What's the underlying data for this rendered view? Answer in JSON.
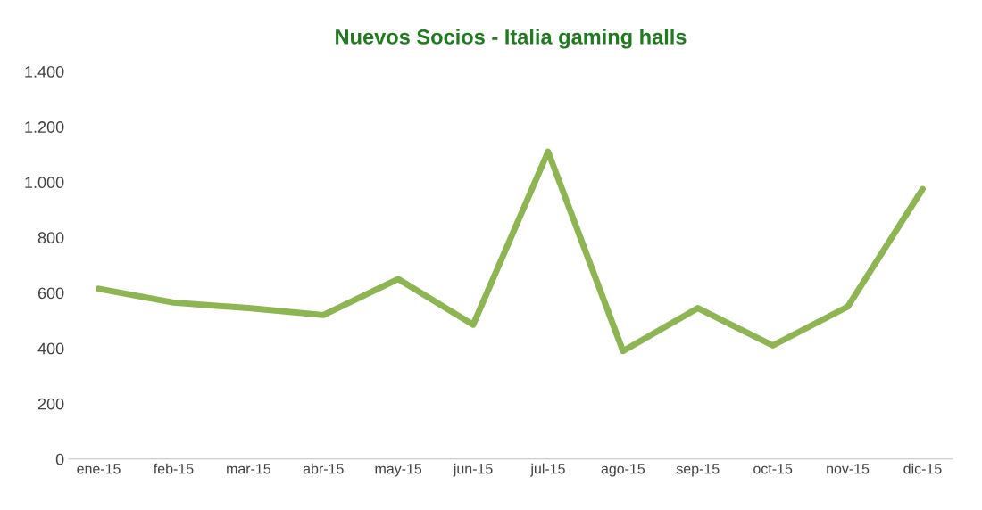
{
  "chart_data": {
    "type": "line",
    "title": "Nuevos Socios - Italia gaming halls",
    "categories": [
      "ene-15",
      "feb-15",
      "mar-15",
      "abr-15",
      "may-15",
      "jun-15",
      "jul-15",
      "ago-15",
      "sep-15",
      "oct-15",
      "nov-15",
      "dic-15"
    ],
    "series": [
      {
        "color": "#8db552",
        "values": [
          615,
          565,
          545,
          520,
          650,
          485,
          1110,
          390,
          545,
          410,
          550,
          975
        ]
      }
    ],
    "ylim": [
      0,
      1400
    ],
    "yticks": [
      0,
      200,
      400,
      600,
      800,
      {
        "value": 1000,
        "label": "1.000"
      },
      {
        "value": 1200,
        "label": "1.200"
      },
      {
        "value": 1400,
        "label": "1.400"
      }
    ],
    "grid": false,
    "marker": "none",
    "line_style": "solid"
  }
}
